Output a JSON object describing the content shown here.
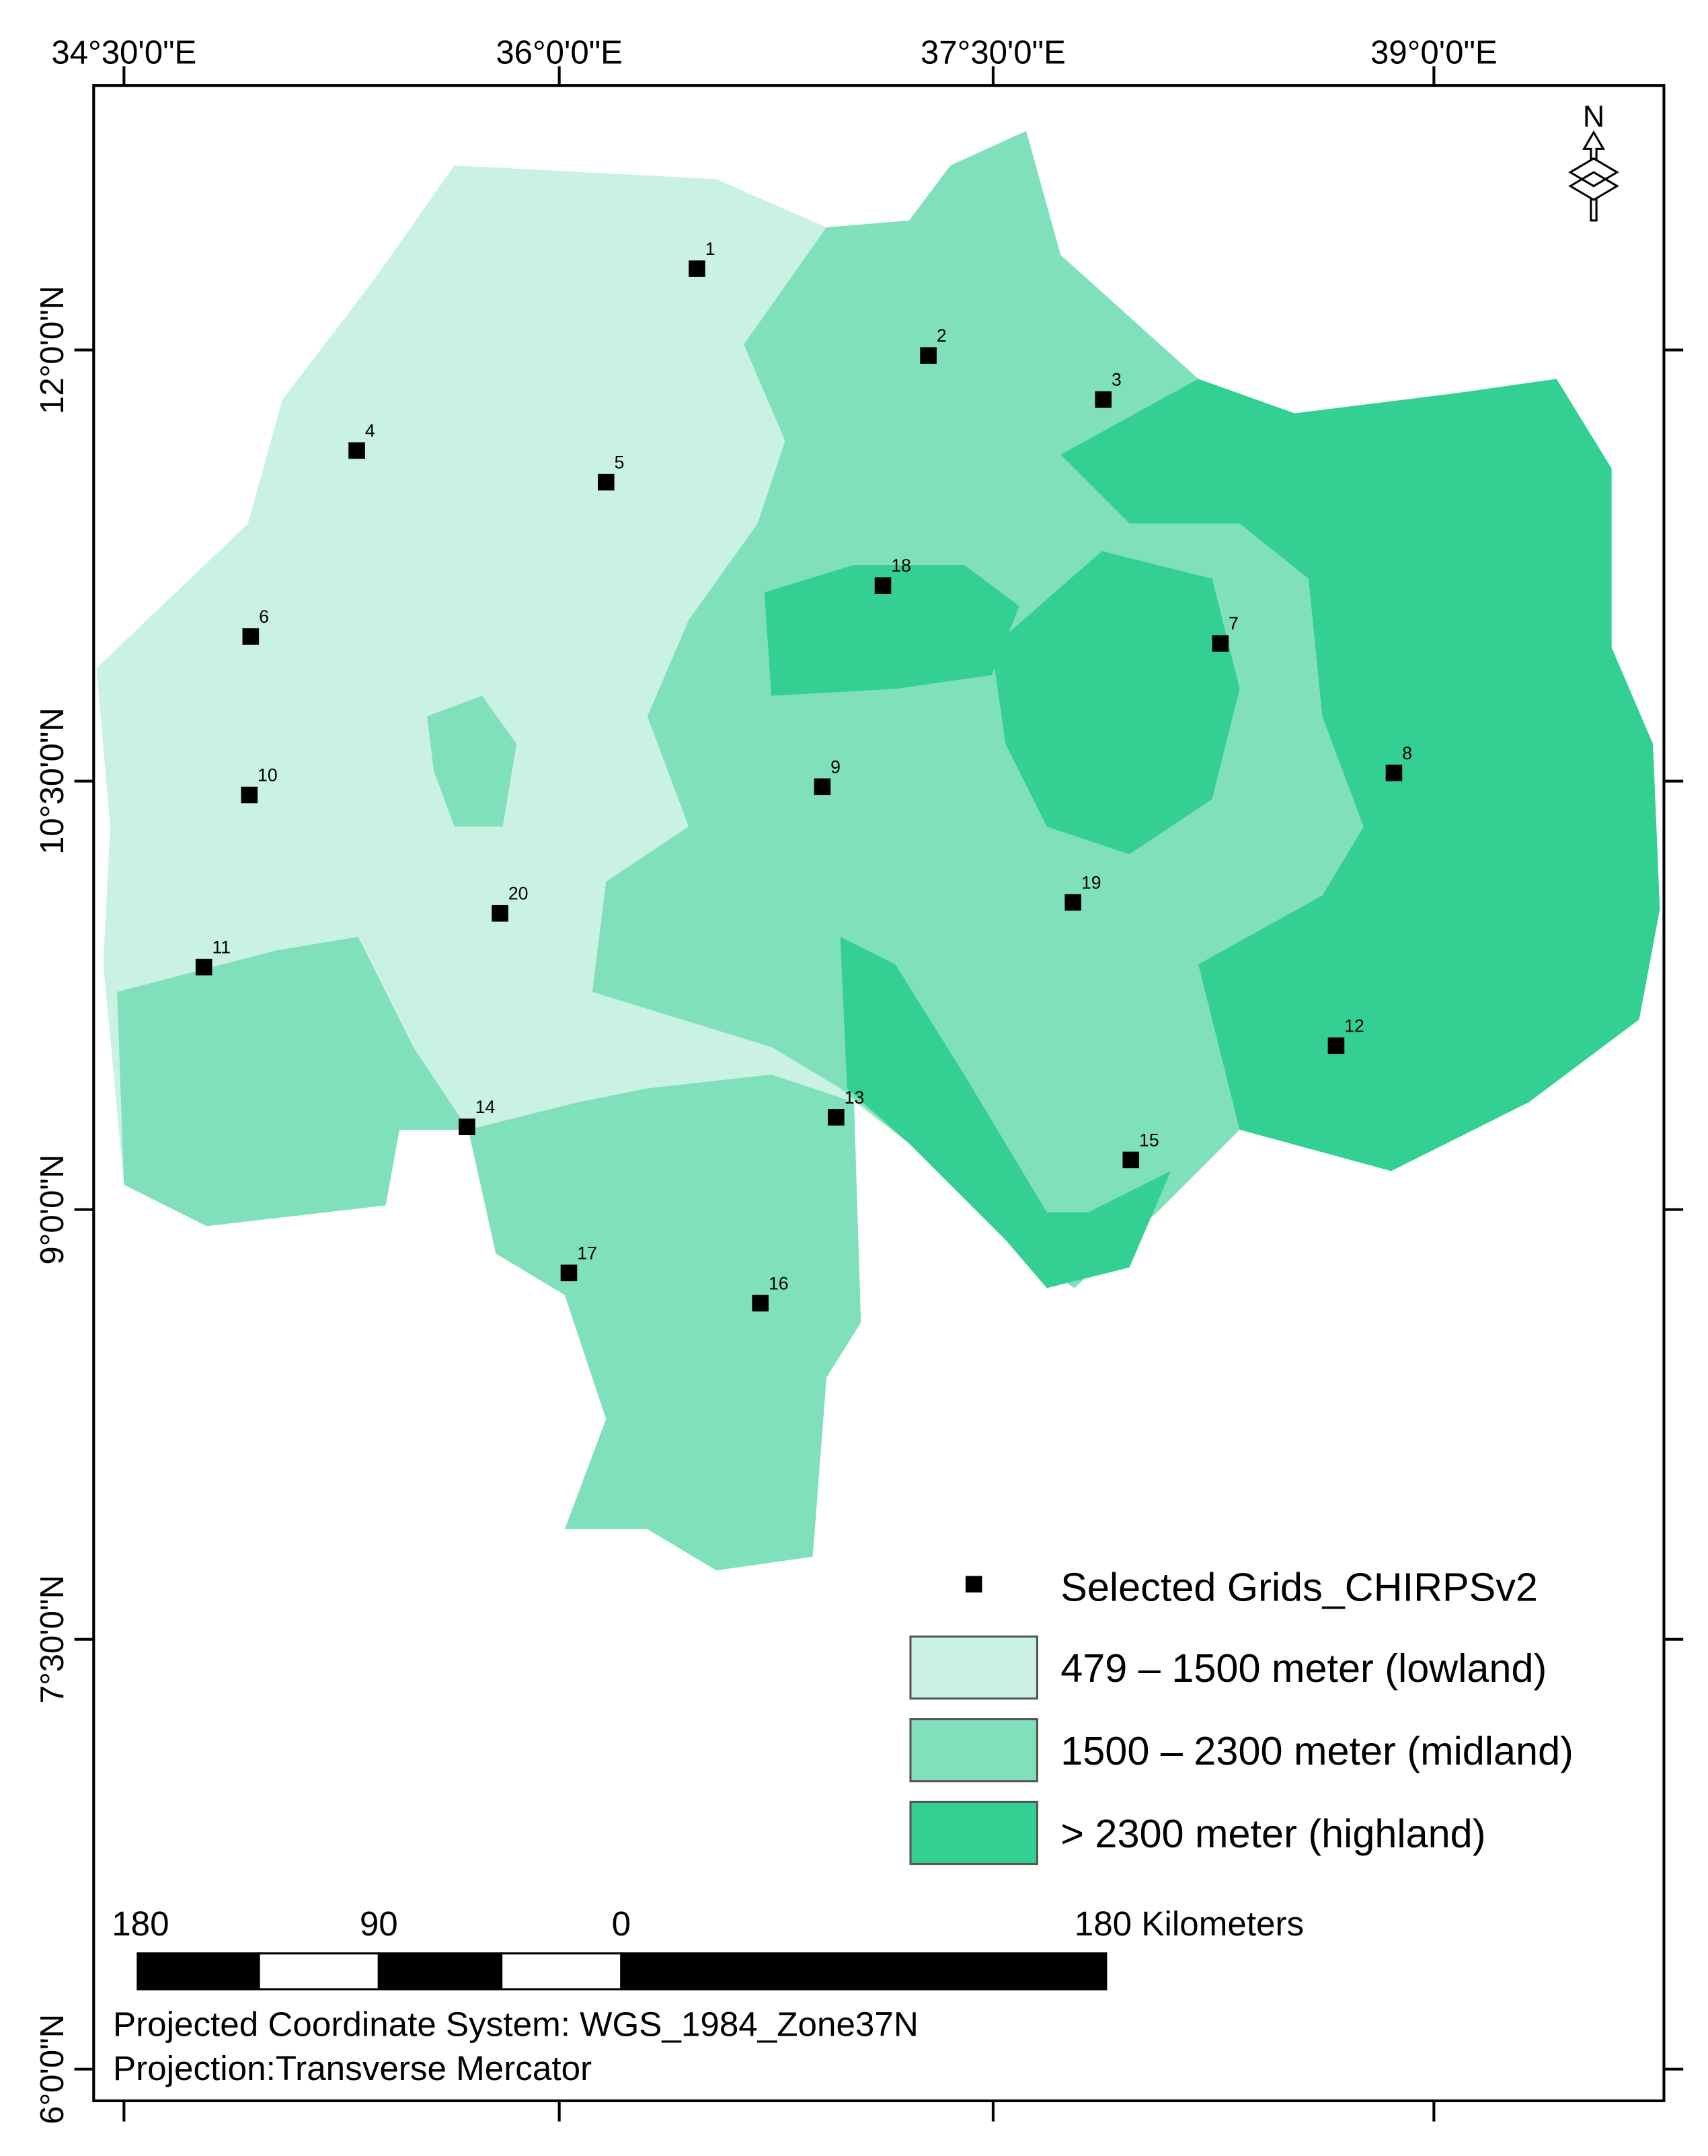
{
  "map": {
    "longitude_labels": [
      "34°30'0\"E",
      "36°0'0\"E",
      "37°30'0\"E",
      "39°0'0\"E"
    ],
    "latitude_labels": [
      "12°0'0\"N",
      "10°30'0\"N",
      "9°0'0\"N",
      "7°30'0\"N",
      "6°0'0\"N"
    ],
    "north_label": "N",
    "grid_points": [
      "1",
      "2",
      "3",
      "4",
      "5",
      "6",
      "7",
      "8",
      "9",
      "10",
      "11",
      "12",
      "13",
      "14",
      "15",
      "16",
      "17",
      "18",
      "19",
      "20"
    ],
    "legend": {
      "marker": "Selected Grids_CHIRPSv2",
      "classes": [
        {
          "label": "479 – 1500 meter (lowland)",
          "color": "#c9f2e4"
        },
        {
          "label": "1500 – 2300 meter (midland)",
          "color": "#80e0bb"
        },
        {
          "label": "> 2300 meter (highland)",
          "color": "#34cf92"
        }
      ]
    },
    "scale_bar": [
      "180",
      "90",
      "0",
      "180 Kilometers"
    ],
    "projection": [
      "Projected Coordinate System: WGS_1984_Zone37N",
      "Projection:Transverse Mercator"
    ]
  }
}
